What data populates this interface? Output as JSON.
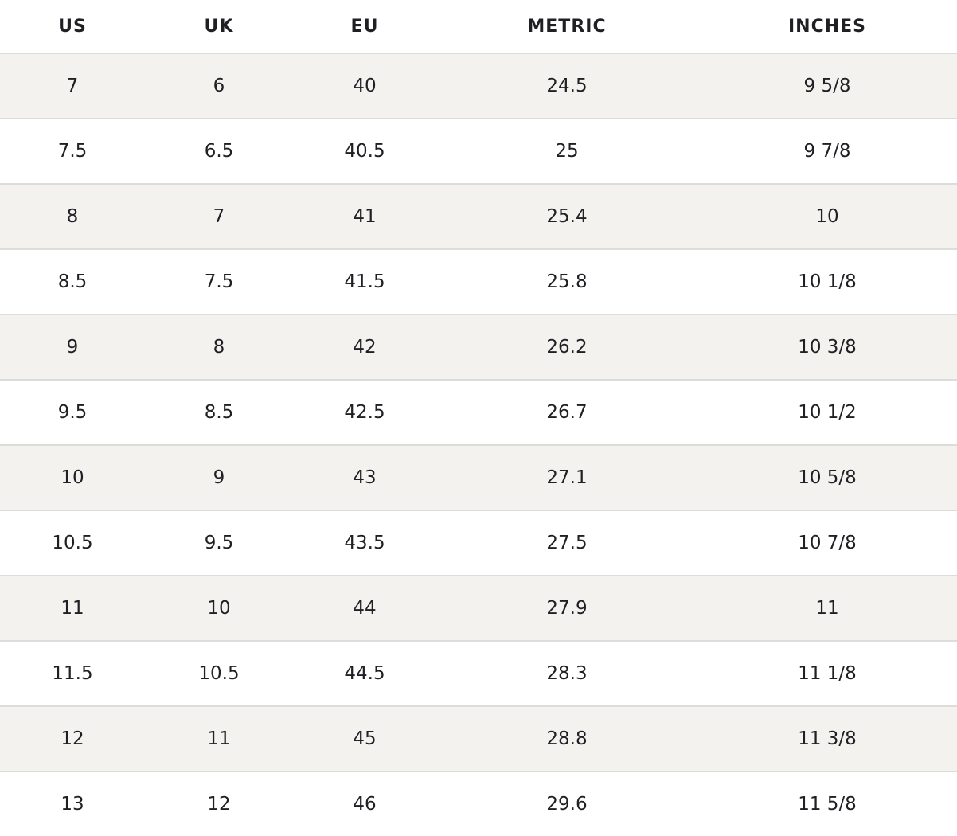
{
  "table": {
    "headers": [
      "US",
      "UK",
      "EU",
      "METRIC",
      "INCHES"
    ],
    "rows": [
      [
        "7",
        "6",
        "40",
        "24.5",
        "9 5/8"
      ],
      [
        "7.5",
        "6.5",
        "40.5",
        "25",
        "9 7/8"
      ],
      [
        "8",
        "7",
        "41",
        "25.4",
        "10"
      ],
      [
        "8.5",
        "7.5",
        "41.5",
        "25.8",
        "10 1/8"
      ],
      [
        "9",
        "8",
        "42",
        "26.2",
        "10 3/8"
      ],
      [
        "9.5",
        "8.5",
        "42.5",
        "26.7",
        "10 1/2"
      ],
      [
        "10",
        "9",
        "43",
        "27.1",
        "10 5/8"
      ],
      [
        "10.5",
        "9.5",
        "43.5",
        "27.5",
        "10 7/8"
      ],
      [
        "11",
        "10",
        "44",
        "27.9",
        "11"
      ],
      [
        "11.5",
        "10.5",
        "44.5",
        "28.3",
        "11 1/8"
      ],
      [
        "12",
        "11",
        "45",
        "28.8",
        "11 3/8"
      ],
      [
        "13",
        "12",
        "46",
        "29.6",
        "11 5/8"
      ]
    ]
  },
  "colors": {
    "text": "#1f1f24",
    "row_alt_background": "#f3f2ef",
    "row_background": "#ffffff",
    "divider": "#dcdcda"
  }
}
